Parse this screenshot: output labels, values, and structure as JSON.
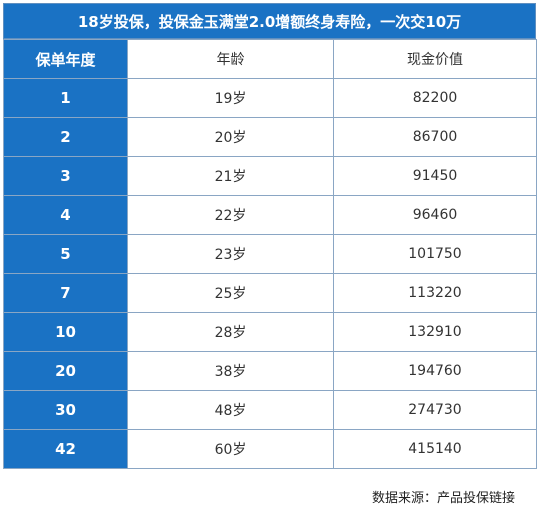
{
  "title": "18岁投保，投保金玉满堂2.0增额终身寿险，一次交10万",
  "headers": [
    "保单年度",
    "年龄",
    "现金价值"
  ],
  "rows": [
    {
      "year": "1",
      "age": "19岁",
      "value": "82200"
    },
    {
      "year": "2",
      "age": "20岁",
      "value": "86700"
    },
    {
      "year": "3",
      "age": "21岁",
      "value": "91450"
    },
    {
      "year": "4",
      "age": "22岁",
      "value": "96460"
    },
    {
      "year": "5",
      "age": "23岁",
      "value": "101750"
    },
    {
      "year": "7",
      "age": "25岁",
      "value": "113220"
    },
    {
      "year": "10",
      "age": "28岁",
      "value": "132910"
    },
    {
      "year": "20",
      "age": "38岁",
      "value": "194760"
    },
    {
      "year": "30",
      "age": "48岁",
      "value": "274730"
    },
    {
      "year": "42",
      "age": "60岁",
      "value": "415140"
    }
  ],
  "source": "数据来源：产品投保链接",
  "colors": {
    "header_blue": "#1a72c4",
    "border": "#8aa6c4"
  }
}
